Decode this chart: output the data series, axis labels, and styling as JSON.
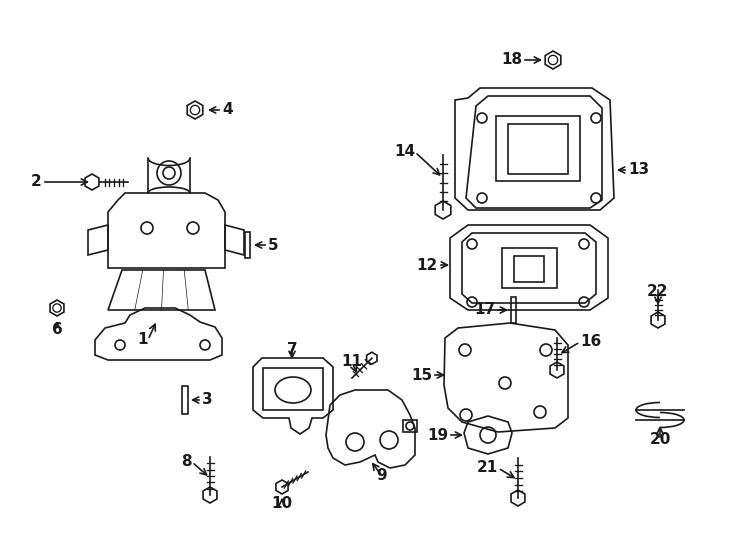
{
  "background": "#ffffff",
  "line_color": "#1a1a1a",
  "line_width": 1.2,
  "fig_w": 7.34,
  "fig_h": 5.4,
  "dpi": 100
}
